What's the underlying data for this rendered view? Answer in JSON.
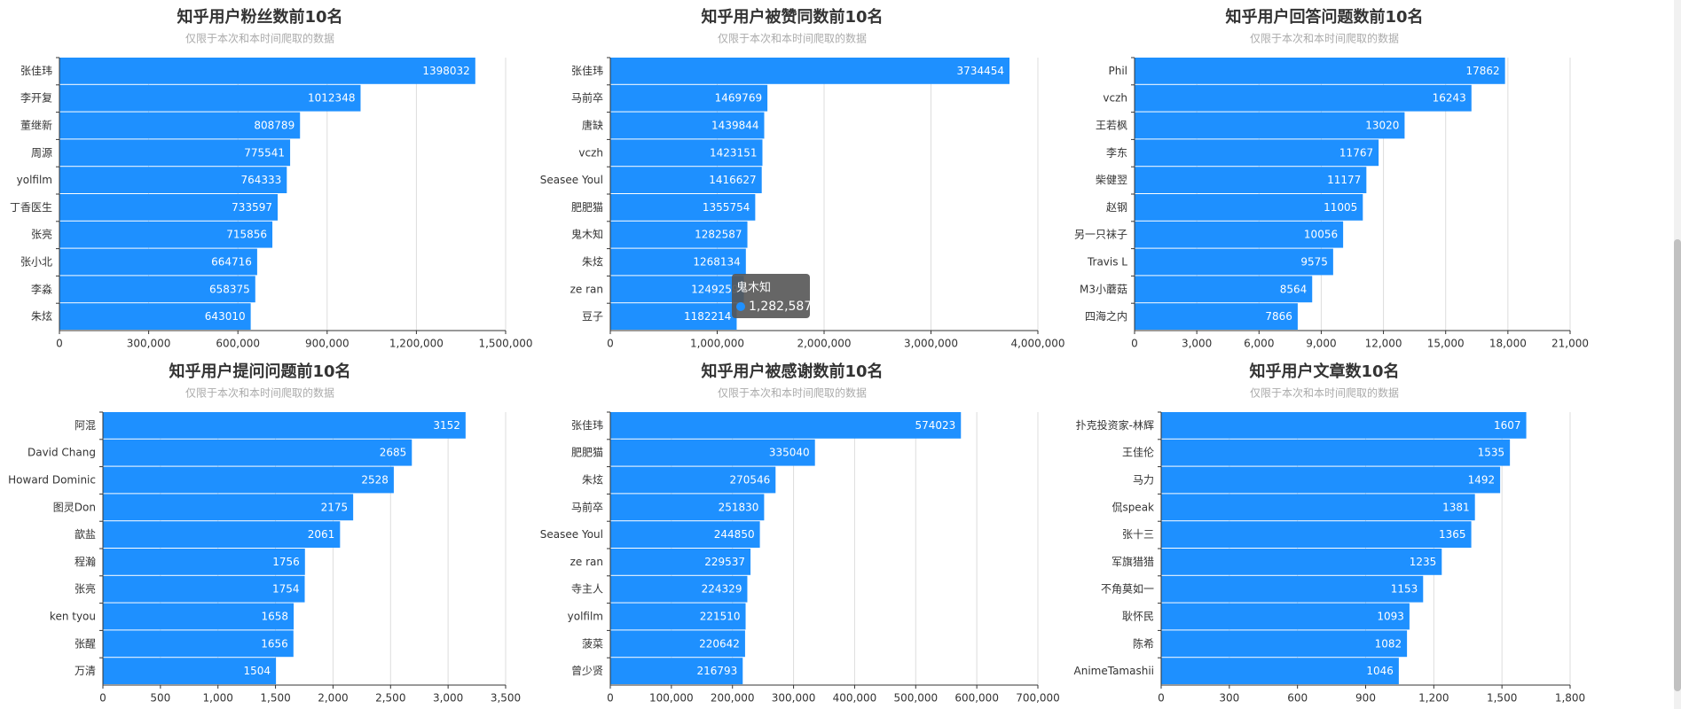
{
  "chart_data": [
    {
      "type": "bar",
      "orientation": "horizontal",
      "title": "知乎用户粉丝数前10名",
      "subtitle": "仅限于本次和本时间爬取的数据",
      "categories": [
        "张佳玮",
        "李开复",
        "董继新",
        "周源",
        "yolfilm",
        "丁香医生",
        "张亮",
        "张小北",
        "李淼",
        "朱炫"
      ],
      "values": [
        1398032,
        1012348,
        808789,
        775541,
        764333,
        733597,
        715856,
        664716,
        658375,
        643010
      ],
      "xlim": [
        0,
        1500000
      ],
      "ticks": [
        0,
        300000,
        600000,
        900000,
        1200000,
        1500000
      ],
      "tick_labels": [
        "0",
        "300,000",
        "600,000",
        "900,000",
        "1,200,000",
        "1,500,000"
      ],
      "grid": true,
      "color": "#1e90ff"
    },
    {
      "type": "bar",
      "orientation": "horizontal",
      "title": "知乎用户被赞同数前10名",
      "subtitle": "仅限于本次和本时间爬取的数据",
      "categories": [
        "张佳玮",
        "马前卒",
        "唐缺",
        "vczh",
        "Seasee Youl",
        "肥肥猫",
        "鬼木知",
        "朱炫",
        "ze ran",
        "豆子"
      ],
      "values": [
        3734454,
        1469769,
        1439844,
        1423151,
        1416627,
        1355754,
        1282587,
        1268134,
        1249259,
        1182214
      ],
      "xlim": [
        0,
        4000000
      ],
      "ticks": [
        0,
        1000000,
        2000000,
        3000000,
        4000000
      ],
      "tick_labels": [
        "0",
        "1,000,000",
        "2,000,000",
        "3,000,000",
        "4,000,000"
      ],
      "grid": true,
      "color": "#1e90ff",
      "tooltip": {
        "title": "鬼木知",
        "value": "1,282,587"
      }
    },
    {
      "type": "bar",
      "orientation": "horizontal",
      "title": "知乎用户回答问题数前10名",
      "subtitle": "仅限于本次和本时间爬取的数据",
      "categories": [
        "Phil",
        "vczh",
        "王若枫",
        "李东",
        "柴健翌",
        "赵钢",
        "另一只袜子",
        "Travis L",
        "M3小蘑菇",
        "四海之内"
      ],
      "values": [
        17862,
        16243,
        13020,
        11767,
        11177,
        11005,
        10056,
        9575,
        8564,
        7866
      ],
      "xlim": [
        0,
        21000
      ],
      "ticks": [
        0,
        3000,
        6000,
        9000,
        12000,
        15000,
        18000,
        21000
      ],
      "tick_labels": [
        "0",
        "3,000",
        "6,000",
        "9,000",
        "12,000",
        "15,000",
        "18,000",
        "21,000"
      ],
      "grid": true,
      "color": "#1e90ff"
    },
    {
      "type": "bar",
      "orientation": "horizontal",
      "title": "知乎用户提问问题前10名",
      "subtitle": "仅限于本次和本时间爬取的数据",
      "categories": [
        "阿混",
        "David Chang",
        "Howard Dominic",
        "图灵Don",
        "歆盐",
        "程瀚",
        "张亮",
        "ken tyou",
        "张醒",
        "万清"
      ],
      "values": [
        3152,
        2685,
        2528,
        2175,
        2061,
        1756,
        1754,
        1658,
        1656,
        1504
      ],
      "xlim": [
        0,
        3500
      ],
      "ticks": [
        0,
        500,
        1000,
        1500,
        2000,
        2500,
        3000,
        3500
      ],
      "tick_labels": [
        "0",
        "500",
        "1,000",
        "1,500",
        "2,000",
        "2,500",
        "3,000",
        "3,500"
      ],
      "grid": true,
      "color": "#1e90ff"
    },
    {
      "type": "bar",
      "orientation": "horizontal",
      "title": "知乎用户被感谢数前10名",
      "subtitle": "仅限于本次和本时间爬取的数据",
      "categories": [
        "张佳玮",
        "肥肥猫",
        "朱炫",
        "马前卒",
        "Seasee Youl",
        "ze ran",
        "寺主人",
        "yolfilm",
        "菠菜",
        "曾少贤"
      ],
      "values": [
        574023,
        335040,
        270546,
        251830,
        244850,
        229537,
        224329,
        221510,
        220642,
        216793
      ],
      "xlim": [
        0,
        700000
      ],
      "ticks": [
        0,
        100000,
        200000,
        300000,
        400000,
        500000,
        600000,
        700000
      ],
      "tick_labels": [
        "0",
        "100,000",
        "200,000",
        "300,000",
        "400,000",
        "500,000",
        "600,000",
        "700,000"
      ],
      "grid": true,
      "color": "#1e90ff"
    },
    {
      "type": "bar",
      "orientation": "horizontal",
      "title": "知乎用户文章数10名",
      "subtitle": "仅限于本次和本时间爬取的数据",
      "categories": [
        "扑克投资家-林辉",
        "王佳伦",
        "马力",
        "侃speak",
        "张十三",
        "军旗猎猎",
        "不角莫如一",
        "耿怀民",
        "陈希",
        "AnimeTamashii"
      ],
      "values": [
        1607,
        1535,
        1492,
        1381,
        1365,
        1235,
        1153,
        1093,
        1082,
        1046
      ],
      "xlim": [
        0,
        1800
      ],
      "ticks": [
        0,
        300,
        600,
        900,
        1200,
        1500,
        1800
      ],
      "tick_labels": [
        "0",
        "300",
        "600",
        "900",
        "1,200",
        "1,500",
        "1,800"
      ],
      "grid": true,
      "color": "#1e90ff"
    }
  ]
}
